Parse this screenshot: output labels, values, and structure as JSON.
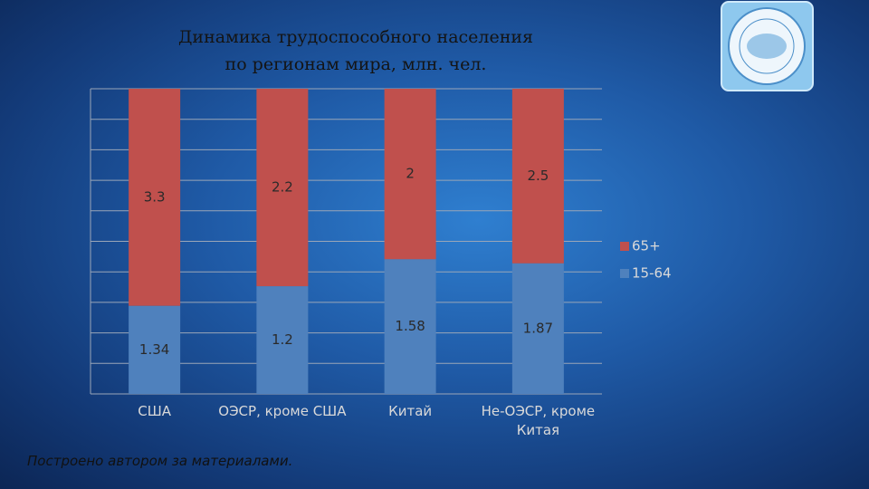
{
  "chart_data": {
    "type": "bar",
    "stacking": "percent",
    "title": "Динамика трудоспособного населения\nпо регионам мира, млн. чел.",
    "categories": [
      "США",
      "ОЭСР, кроме США",
      "Китай",
      "Не-ОЭСР, кроме Китая"
    ],
    "series": [
      {
        "name": "15-64",
        "color": "#4f81bd",
        "values": [
          1.34,
          1.2,
          1.58,
          1.87
        ]
      },
      {
        "name": "65+",
        "color": "#c0504d",
        "values": [
          3.3,
          2.2,
          2,
          2.5
        ]
      }
    ],
    "ylim": [
      0,
      100
    ],
    "yticks": [
      0,
      10,
      20,
      30,
      40,
      50,
      60,
      70,
      80,
      90,
      100
    ],
    "grid": true,
    "legend": "right",
    "note": "Построено автором за материалами."
  }
}
